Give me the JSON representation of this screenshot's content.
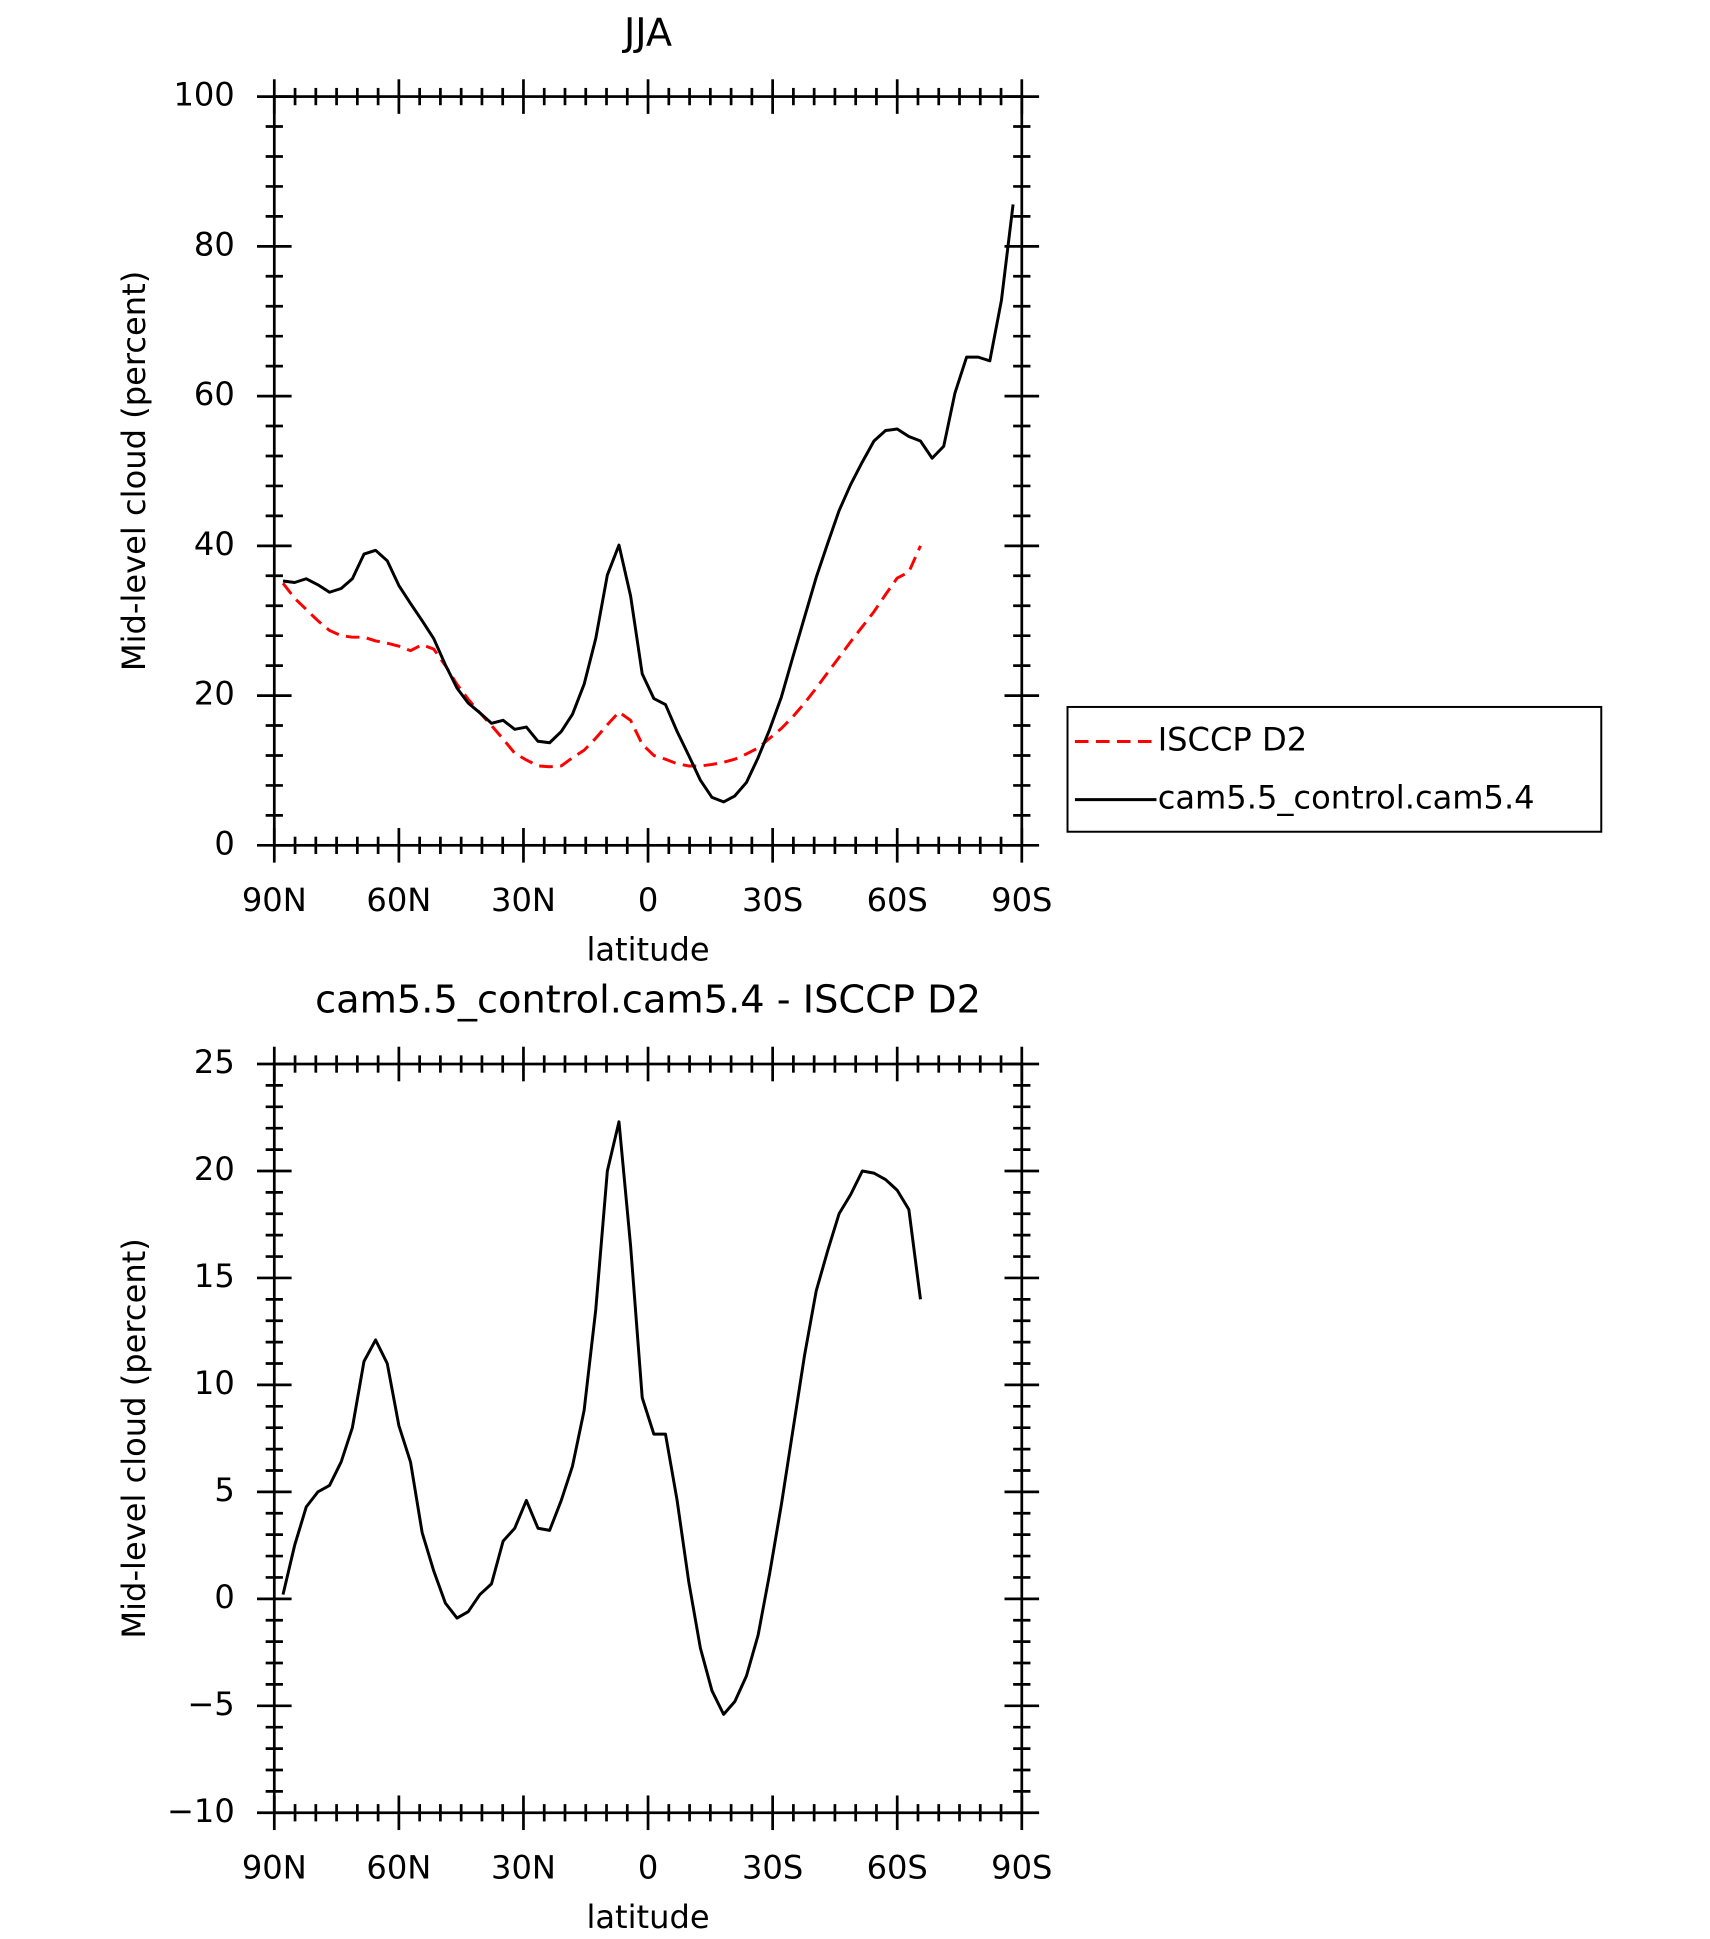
{
  "chart_data": [
    {
      "type": "line",
      "title": "JJA",
      "xlabel": "latitude",
      "ylabel": "Mid-level cloud (percent)",
      "x": [
        87.9,
        85.1,
        82.3,
        79.5,
        76.7,
        73.9,
        71.2,
        68.4,
        65.6,
        62.8,
        60.0,
        57.2,
        54.4,
        51.6,
        48.8,
        46.0,
        43.3,
        40.5,
        37.7,
        34.9,
        32.1,
        29.3,
        26.5,
        23.7,
        20.9,
        18.2,
        15.4,
        12.6,
        9.8,
        7.0,
        4.2,
        1.4,
        -1.4,
        -4.2,
        -7.0,
        -9.8,
        -12.6,
        -15.4,
        -18.2,
        -20.9,
        -23.7,
        -26.5,
        -29.3,
        -32.1,
        -34.9,
        -37.7,
        -40.5,
        -43.3,
        -46.0,
        -48.8,
        -51.6,
        -54.4,
        -57.2,
        -60.0,
        -62.8,
        -65.6,
        -68.4,
        -71.2,
        -73.9,
        -76.7,
        -79.5,
        -82.3,
        -85.1,
        -87.9
      ],
      "series": [
        {
          "name": "ISCCP D2",
          "color": "#ff0000",
          "line_style": "dashed",
          "values": [
            35.0,
            33.0,
            31.5,
            30.0,
            28.7,
            28.0,
            27.8,
            27.8,
            27.3,
            27.0,
            26.6,
            26.0,
            26.8,
            26.2,
            24.0,
            21.5,
            19.5,
            17.7,
            16.0,
            14.2,
            12.3,
            11.4,
            10.6,
            10.5,
            10.6,
            11.7,
            12.7,
            14.3,
            16.1,
            17.8,
            16.7,
            13.5,
            12.0,
            11.5,
            10.9,
            10.6,
            10.6,
            10.8,
            11.1,
            11.5,
            12.2,
            13.0,
            14.3,
            15.6,
            17.2,
            19.0,
            21.0,
            23.1,
            25.1,
            27.2,
            29.2,
            31.2,
            33.5,
            35.7,
            36.5,
            40.0,
            null,
            null,
            null,
            null,
            null,
            null,
            null,
            null
          ]
        },
        {
          "name": "cam5.5_control.cam5.4",
          "color": "#000000",
          "line_style": "solid",
          "values": [
            35.3,
            35.1,
            35.6,
            34.8,
            33.8,
            34.3,
            35.6,
            38.9,
            39.4,
            38.0,
            34.7,
            32.3,
            30.0,
            27.6,
            24.1,
            21.0,
            19.0,
            17.7,
            16.3,
            16.7,
            15.5,
            15.8,
            13.9,
            13.7,
            15.2,
            17.5,
            21.5,
            27.6,
            36.1,
            40.1,
            33.3,
            22.9,
            19.6,
            18.8,
            15.2,
            12.0,
            8.7,
            6.4,
            5.8,
            6.6,
            8.4,
            11.7,
            15.5,
            19.8,
            25.2,
            30.5,
            35.8,
            40.4,
            44.7,
            48.2,
            51.2,
            54.0,
            55.4,
            55.6,
            54.6,
            54.0,
            51.7,
            53.3,
            60.4,
            65.2,
            65.2,
            64.7,
            72.8,
            85.6
          ]
        }
      ],
      "xlim": [
        90,
        -90
      ],
      "xticks": [
        {
          "value": 90,
          "label": "90N"
        },
        {
          "value": 60,
          "label": "60N"
        },
        {
          "value": 30,
          "label": "30N"
        },
        0,
        {
          "value": -30,
          "label": "30S"
        },
        {
          "value": -60,
          "label": "60S"
        },
        {
          "value": -90,
          "label": "90S"
        }
      ],
      "ylim": [
        0,
        100
      ],
      "yticks": [
        0,
        20,
        40,
        60,
        80,
        100
      ],
      "legend": "right"
    },
    {
      "type": "line",
      "title": "cam5.5_control.cam5.4 - ISCCP D2",
      "xlabel": "latitude",
      "ylabel": "Mid-level cloud (percent)",
      "x": [
        87.9,
        85.1,
        82.3,
        79.5,
        76.7,
        73.9,
        71.2,
        68.4,
        65.6,
        62.8,
        60.0,
        57.2,
        54.4,
        51.6,
        48.8,
        46.0,
        43.3,
        40.5,
        37.7,
        34.9,
        32.1,
        29.3,
        26.5,
        23.7,
        20.9,
        18.2,
        15.4,
        12.6,
        9.8,
        7.0,
        4.2,
        1.4,
        -1.4,
        -4.2,
        -7.0,
        -9.8,
        -12.6,
        -15.4,
        -18.2,
        -20.9,
        -23.7,
        -26.5,
        -29.3,
        -32.1,
        -34.9,
        -37.7,
        -40.5,
        -43.3,
        -46.0,
        -48.8,
        -51.6,
        -54.4,
        -57.2,
        -60.0,
        -62.8,
        -65.6,
        -68.4,
        -71.2,
        -73.9,
        -76.7,
        -79.5,
        -82.3,
        -85.1,
        -87.9
      ],
      "series": [
        {
          "color": "#000000",
          "line_style": "solid",
          "values": [
            0.2,
            2.5,
            4.3,
            5.0,
            5.3,
            6.4,
            8.0,
            11.1,
            12.1,
            11.0,
            8.1,
            6.4,
            3.1,
            1.3,
            -0.2,
            -0.9,
            -0.6,
            0.2,
            0.7,
            2.7,
            3.3,
            4.6,
            3.3,
            3.2,
            4.6,
            6.2,
            8.8,
            13.5,
            20.0,
            22.3,
            16.5,
            9.4,
            7.7,
            7.7,
            4.6,
            0.8,
            -2.3,
            -4.3,
            -5.4,
            -4.8,
            -3.6,
            -1.7,
            1.2,
            4.4,
            7.9,
            11.4,
            14.4,
            16.3,
            18.0,
            18.9,
            20.0,
            19.9,
            19.6,
            19.1,
            18.2,
            14.0,
            null,
            null,
            null,
            null,
            null,
            null,
            null,
            null
          ]
        }
      ],
      "xlim": [
        90,
        -90
      ],
      "xticks": [
        {
          "value": 90,
          "label": "90N"
        },
        {
          "value": 60,
          "label": "60N"
        },
        {
          "value": 30,
          "label": "30N"
        },
        0,
        {
          "value": -30,
          "label": "30S"
        },
        {
          "value": -60,
          "label": "60S"
        },
        {
          "value": -90,
          "label": "90S"
        }
      ],
      "ylim": [
        -10,
        25
      ],
      "yticks": [
        {
          "value": -10,
          "label": "−10"
        },
        {
          "value": -5,
          "label": "−5"
        },
        0,
        5,
        10,
        15,
        20,
        25
      ]
    }
  ]
}
